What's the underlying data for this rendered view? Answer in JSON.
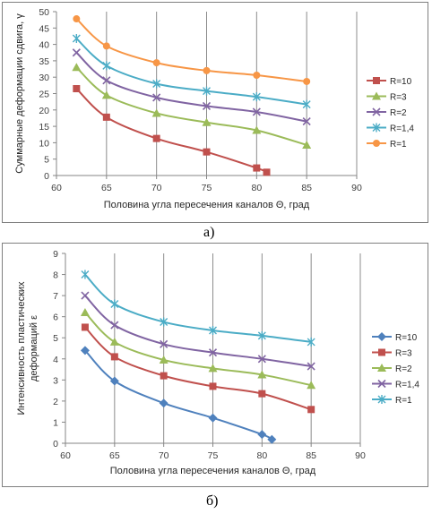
{
  "chart_data": [
    {
      "type": "line",
      "panel": "a",
      "caption": "а)",
      "xlabel": "Половина угла пересечения каналов Θ, град",
      "ylabel": "Суммарные деформации сдвига, γ",
      "xlim": [
        60,
        90
      ],
      "ylim": [
        0,
        50
      ],
      "xticks": [
        60,
        65,
        70,
        75,
        80,
        85,
        90
      ],
      "yticks": [
        0,
        5,
        10,
        15,
        20,
        25,
        30,
        35,
        40,
        45,
        50
      ],
      "grid": "vertical",
      "legend_position": "right",
      "series": [
        {
          "name": "R=10",
          "color": "#c0504d",
          "marker": "square",
          "x": [
            62,
            65,
            70,
            75,
            80,
            81
          ],
          "y": [
            26.5,
            17.8,
            11.3,
            7.2,
            2.3,
            1.0
          ]
        },
        {
          "name": "R=3",
          "color": "#9bbb59",
          "marker": "triangle",
          "x": [
            62,
            65,
            70,
            75,
            80,
            85
          ],
          "y": [
            33,
            24.5,
            19,
            16.2,
            13.8,
            9.3
          ]
        },
        {
          "name": "R=2",
          "color": "#8064a2",
          "marker": "x",
          "x": [
            62,
            65,
            70,
            75,
            80,
            85
          ],
          "y": [
            37.5,
            29,
            23.8,
            21.2,
            19.4,
            16.5
          ]
        },
        {
          "name": "R=1,4",
          "color": "#4bacc6",
          "marker": "star",
          "x": [
            62,
            65,
            70,
            75,
            80,
            85
          ],
          "y": [
            41.8,
            33.5,
            28,
            25.8,
            24,
            21.7
          ]
        },
        {
          "name": "R=1",
          "color": "#f79646",
          "marker": "circle",
          "x": [
            62,
            65,
            70,
            75,
            80,
            85
          ],
          "y": [
            47.8,
            39.5,
            34.4,
            32,
            30.6,
            28.7
          ]
        }
      ]
    },
    {
      "type": "line",
      "panel": "b",
      "caption": "б)",
      "xlabel": "Половина угла пересечения каналов Θ, град",
      "ylabel": "Интенсивность пластических деформаций ε",
      "xlim": [
        60,
        90
      ],
      "ylim": [
        0,
        9
      ],
      "xticks": [
        60,
        65,
        70,
        75,
        80,
        85,
        90
      ],
      "yticks": [
        0,
        1,
        2,
        3,
        4,
        5,
        6,
        7,
        8,
        9
      ],
      "grid": "vertical",
      "legend_position": "right",
      "series": [
        {
          "name": "R=10",
          "color": "#4f81bd",
          "marker": "diamond",
          "x": [
            62,
            65,
            70,
            75,
            80,
            81
          ],
          "y": [
            4.4,
            2.95,
            1.9,
            1.2,
            0.42,
            0.18
          ]
        },
        {
          "name": "R=3",
          "color": "#c0504d",
          "marker": "square",
          "x": [
            62,
            65,
            70,
            75,
            80,
            85
          ],
          "y": [
            5.5,
            4.1,
            3.2,
            2.7,
            2.35,
            1.6
          ]
        },
        {
          "name": "R=2",
          "color": "#9bbb59",
          "marker": "triangle",
          "x": [
            62,
            65,
            70,
            75,
            80,
            85
          ],
          "y": [
            6.2,
            4.8,
            3.95,
            3.55,
            3.25,
            2.75
          ]
        },
        {
          "name": "R=1,4",
          "color": "#8064a2",
          "marker": "x",
          "x": [
            62,
            65,
            70,
            75,
            80,
            85
          ],
          "y": [
            7.0,
            5.6,
            4.7,
            4.3,
            4.0,
            3.65
          ]
        },
        {
          "name": "R=1",
          "color": "#4bacc6",
          "marker": "star",
          "x": [
            62,
            65,
            70,
            75,
            80,
            85
          ],
          "y": [
            8.0,
            6.6,
            5.75,
            5.35,
            5.1,
            4.8
          ]
        }
      ]
    }
  ]
}
